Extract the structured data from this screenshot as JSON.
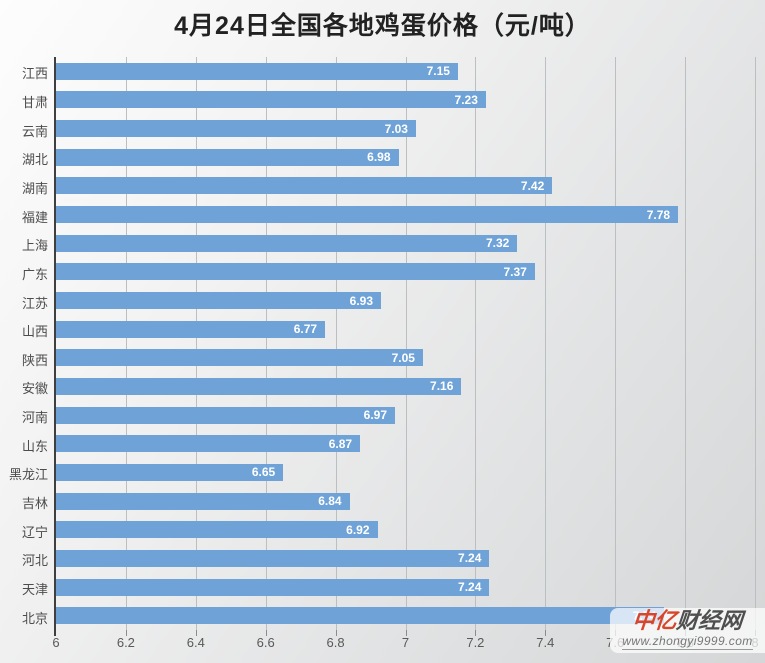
{
  "title": "4月24日全国各地鸡蛋价格（元/吨）",
  "chart_data": {
    "type": "bar",
    "orientation": "horizontal",
    "title": "4月24日全国各地鸡蛋价格（元/吨）",
    "categories": [
      "江西",
      "甘肃",
      "云南",
      "湖北",
      "湖南",
      "福建",
      "上海",
      "广东",
      "江苏",
      "山西",
      "陕西",
      "安徽",
      "河南",
      "山东",
      "黑龙江",
      "吉林",
      "辽宁",
      "河北",
      "天津",
      "北京"
    ],
    "values": [
      7.15,
      7.23,
      7.03,
      6.98,
      7.42,
      7.78,
      7.32,
      7.37,
      6.93,
      6.77,
      7.05,
      7.16,
      6.97,
      6.87,
      6.65,
      6.84,
      6.92,
      7.24,
      7.24,
      7.74
    ],
    "xlim": [
      6,
      8
    ],
    "x_ticks": [
      "6",
      "6.2",
      "6.4",
      "6.6",
      "6.8",
      "7",
      "7.2",
      "7.4",
      "7.6",
      "7.8",
      "8"
    ],
    "xlabel": "",
    "ylabel": "",
    "grid": true,
    "legend": "none",
    "value_labels": "inside-end",
    "bar_color": "#6FA3D8"
  },
  "colors": {
    "bar": "#6FA3D8",
    "gridline": "#bcbfc1",
    "axis_line": "#3f3f3f",
    "title_text": "#222222",
    "category_text": "#4d4d4d",
    "tick_text": "#595959",
    "value_text": "#ffffff",
    "watermark_red": "#d8452a",
    "watermark_gray": "#4f4f4f"
  },
  "watermark": {
    "brand_red": "中亿",
    "brand_gray": "财经网",
    "url": "www.zhongyi9999.com"
  }
}
